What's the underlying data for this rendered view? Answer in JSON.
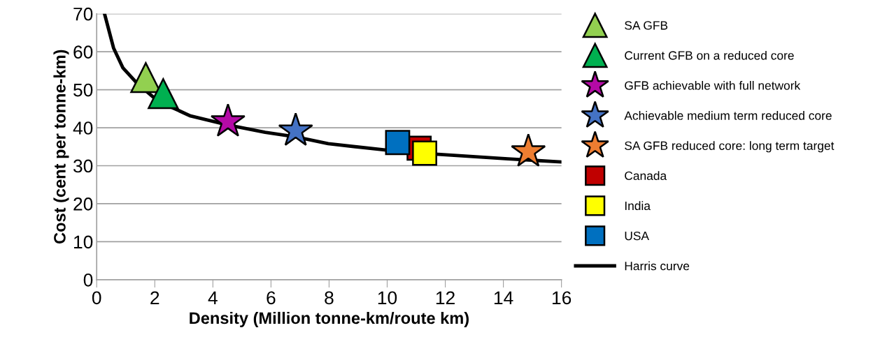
{
  "chart_data": {
    "type": "scatter",
    "xlabel": "Density (Million tonne-km/route km)",
    "ylabel": "Cost (cent per tonne-km)",
    "xlim": [
      0,
      16
    ],
    "xticks": [
      0,
      2,
      4,
      6,
      8,
      10,
      12,
      14,
      16
    ],
    "ylim": [
      0,
      70
    ],
    "yticks": [
      0,
      10,
      20,
      30,
      40,
      50,
      60,
      70
    ],
    "grid": "y",
    "legend": "right",
    "series": [
      {
        "name": "SA GFB",
        "color": "#92d050",
        "marker": "triangle",
        "x": [
          1.69
        ],
        "values": [
          53.2
        ]
      },
      {
        "name": "Current GFB on a reduced core",
        "color": "#00b050",
        "marker": "triangle",
        "x": [
          2.29
        ],
        "values": [
          49.0
        ]
      },
      {
        "name": "GFB achievable with full network",
        "color": "#b40aa6",
        "marker": "star",
        "x": [
          4.52
        ],
        "values": [
          41.6
        ]
      },
      {
        "name": "Achievable medium term reduced core",
        "color": "#4472c4",
        "marker": "star",
        "x": [
          6.85
        ],
        "values": [
          39.2
        ]
      },
      {
        "name": "SA GFB reduced core: long term target",
        "color": "#ed7d31",
        "marker": "star",
        "x": [
          14.86
        ],
        "values": [
          33.7
        ]
      },
      {
        "name": "Canada",
        "color": "#c00000",
        "marker": "square",
        "x": [
          11.1
        ],
        "values": [
          34.6
        ]
      },
      {
        "name": "India",
        "color": "#ffff00",
        "marker": "square",
        "x": [
          11.29
        ],
        "values": [
          33.3
        ]
      },
      {
        "name": "USA",
        "color": "#0070c0",
        "marker": "square",
        "x": [
          10.36
        ],
        "values": [
          36.1
        ]
      },
      {
        "name": "Harris curve",
        "type": "line",
        "color": "#000000",
        "marker": "none",
        "line_style": "solid",
        "x": [
          0.27,
          0.58,
          0.9,
          1.38,
          1.94,
          2.43,
          3.23,
          4.52,
          5.8,
          6.85,
          7.97,
          9.98,
          11.75,
          14.15,
          16.0
        ],
        "values": [
          70,
          61.0,
          55.8,
          51.8,
          48.1,
          45.9,
          43.1,
          40.7,
          38.8,
          37.6,
          35.8,
          34.1,
          33.0,
          31.8,
          31.0
        ]
      }
    ]
  }
}
